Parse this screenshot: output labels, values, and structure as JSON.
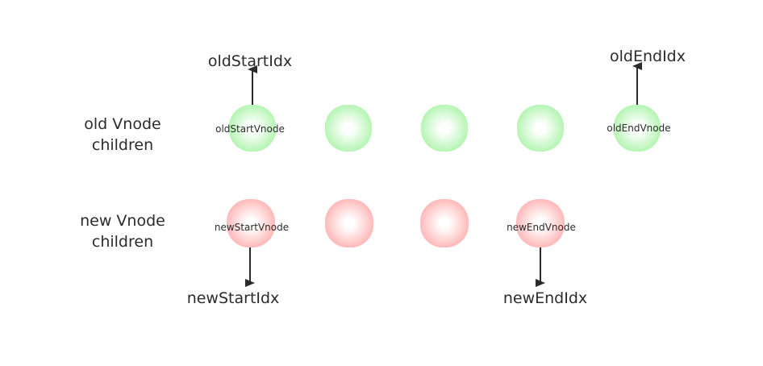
{
  "rows": {
    "old": {
      "label_line1": "old Vnode",
      "label_line2": "children",
      "color": "#b6f5b4"
    },
    "new": {
      "label_line1": "new Vnode",
      "label_line2": "children",
      "color": "#ffbaba"
    }
  },
  "nodes": {
    "old_start": "oldStartVnode",
    "old_end": "oldEndVnode",
    "new_start": "newStartVnode",
    "new_end": "newEndVnode"
  },
  "pointers": {
    "old_start_idx": "oldStartIdx",
    "old_end_idx": "oldEndIdx",
    "new_start_idx": "newStartIdx",
    "new_end_idx": "newEndIdx"
  }
}
